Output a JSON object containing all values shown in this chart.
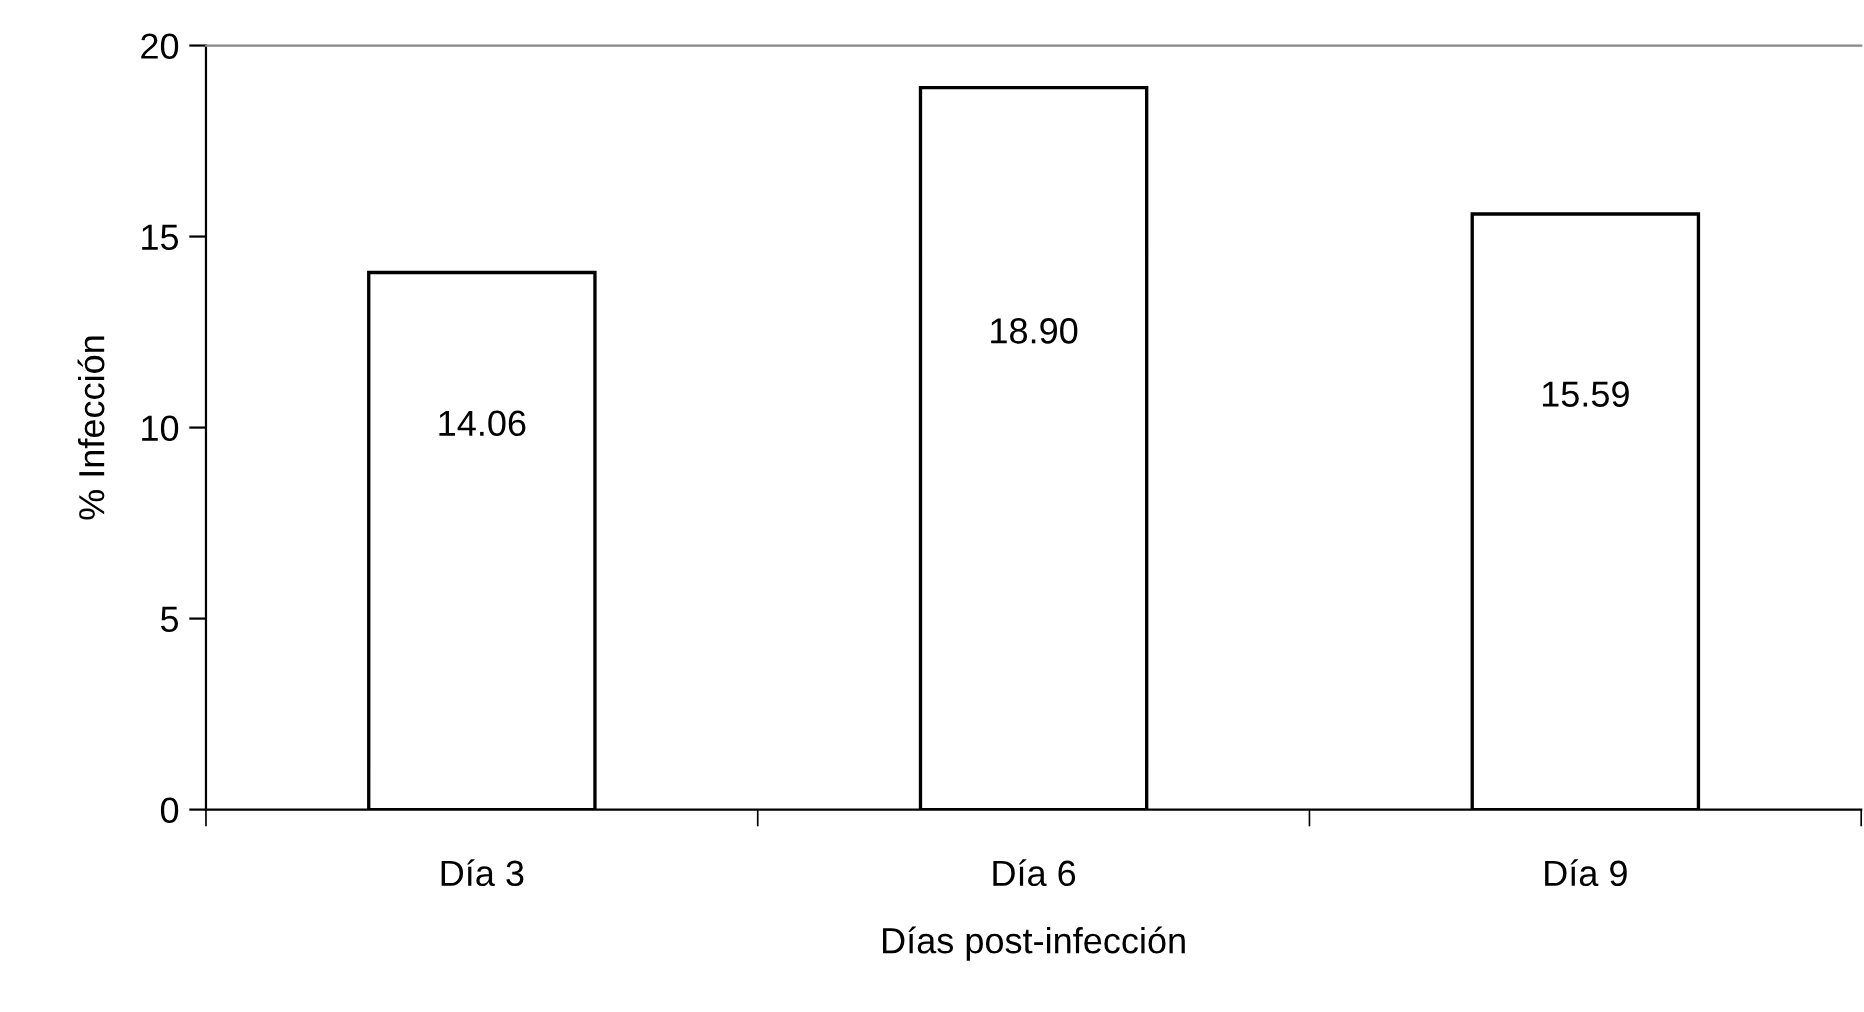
{
  "chart_data": {
    "type": "bar",
    "xlabel": "Días post-infección",
    "ylabel": "% Infección",
    "categories": [
      "Día 3",
      "Día 6",
      "Día 9"
    ],
    "values": [
      14.06,
      18.9,
      15.59
    ],
    "value_labels": [
      "14.06",
      "18.90",
      "15.59"
    ],
    "color": "#ffffff",
    "ylim": [
      0,
      20
    ],
    "yticks": [
      0,
      5,
      10,
      15,
      20
    ],
    "grid": false
  }
}
